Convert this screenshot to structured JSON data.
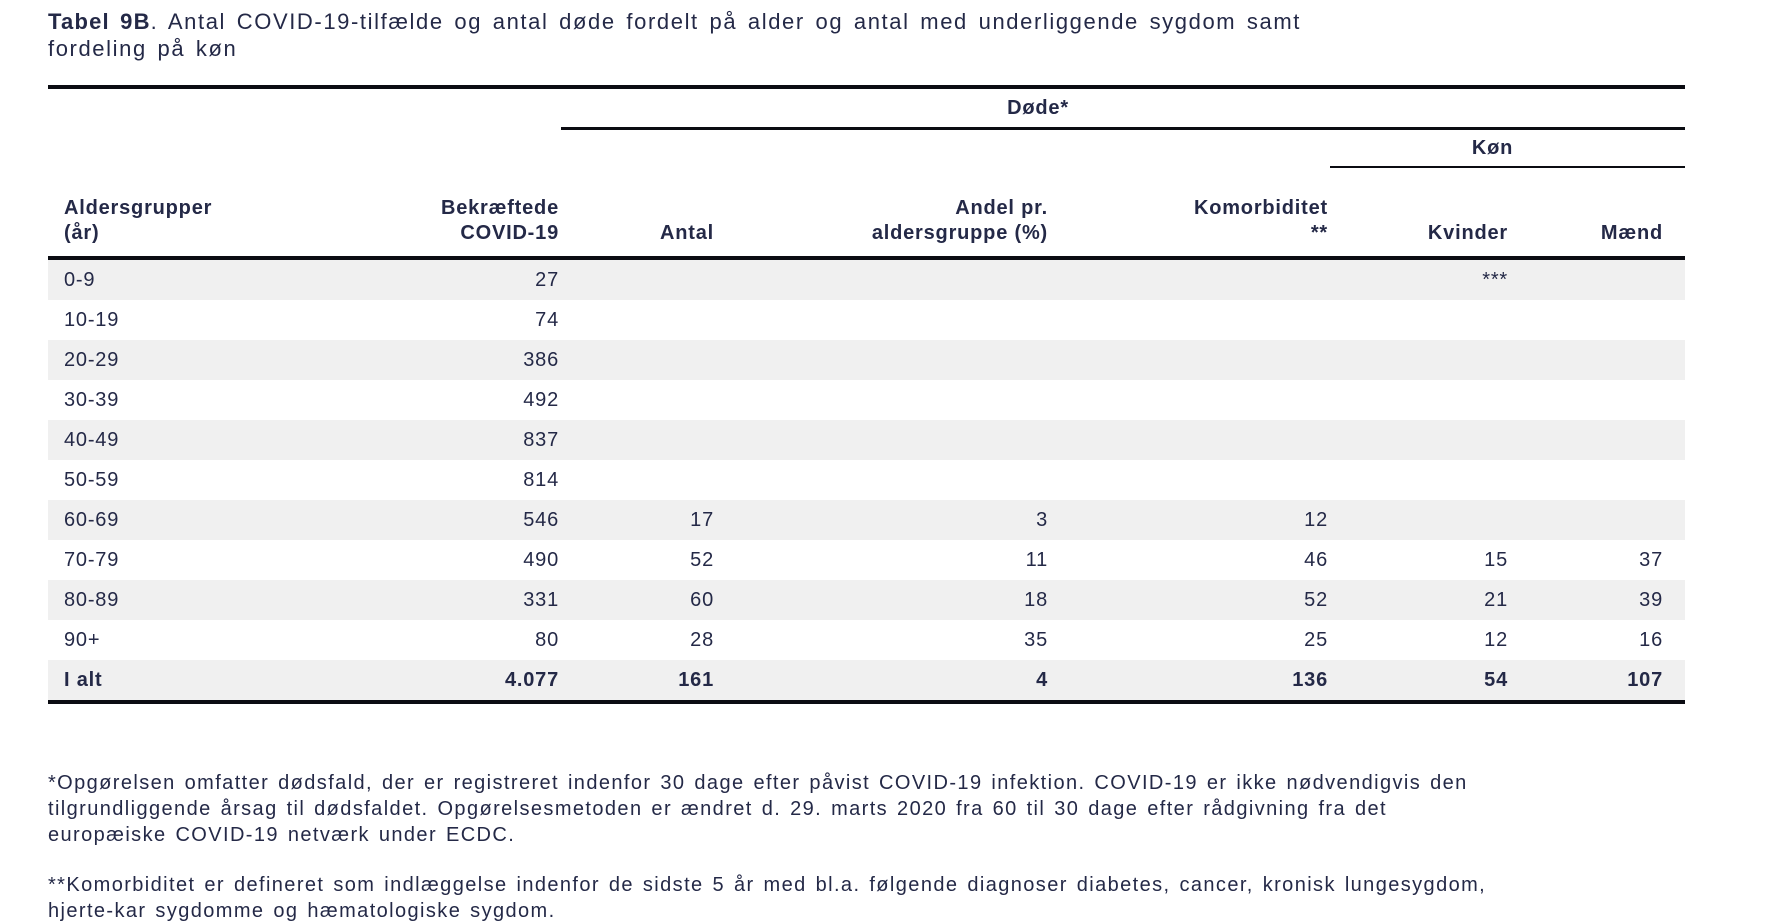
{
  "title": {
    "bold": "Tabel 9B",
    "rest": ". Antal COVID-19-tilfælde og antal døde fordelt på alder og antal med underliggende sygdom samt fordeling på køn"
  },
  "table": {
    "group_dode": "Døde*",
    "group_kon": "Køn",
    "col_headers": [
      {
        "line1": "Aldersgrupper",
        "line2": "(år)"
      },
      {
        "line1": "Bekræftede",
        "line2": "COVID-19"
      },
      {
        "line1": "",
        "line2": "Antal"
      },
      {
        "line1": "Andel pr.",
        "line2": "aldersgruppe (%)"
      },
      {
        "line1": "Komorbiditet",
        "line2": "**"
      },
      {
        "line1": "",
        "line2": "Kvinder"
      },
      {
        "line1": "",
        "line2": "Mænd"
      }
    ],
    "rows": [
      {
        "cells": [
          "0-9",
          "27",
          "",
          "",
          "",
          "***",
          ""
        ]
      },
      {
        "cells": [
          "10-19",
          "74",
          "",
          "",
          "",
          "",
          ""
        ]
      },
      {
        "cells": [
          "20-29",
          "386",
          "",
          "",
          "",
          "",
          ""
        ]
      },
      {
        "cells": [
          "30-39",
          "492",
          "",
          "",
          "",
          "",
          ""
        ]
      },
      {
        "cells": [
          "40-49",
          "837",
          "",
          "",
          "",
          "",
          ""
        ]
      },
      {
        "cells": [
          "50-59",
          "814",
          "",
          "",
          "",
          "",
          ""
        ]
      },
      {
        "cells": [
          "60-69",
          "546",
          "17",
          "3",
          "12",
          "",
          ""
        ]
      },
      {
        "cells": [
          "70-79",
          "490",
          "52",
          "11",
          "46",
          "15",
          "37"
        ]
      },
      {
        "cells": [
          "80-89",
          "331",
          "60",
          "18",
          "52",
          "21",
          "39"
        ]
      },
      {
        "cells": [
          "90+",
          "80",
          "28",
          "35",
          "25",
          "12",
          "16"
        ]
      },
      {
        "cells": [
          "I alt",
          "4.077",
          "161",
          "4",
          "136",
          "54",
          "107"
        ],
        "total": true
      }
    ]
  },
  "footnotes": [
    "*Opgørelsen omfatter dødsfald, der er registreret indenfor 30 dage efter påvist COVID-19 infektion. COVID-19 er ikke nødvendigvis den tilgrundliggende årsag til dødsfaldet. Opgørelsesmetoden er ændret d. 29. marts 2020 fra 60 til 30 dage efter rådgivning fra det europæiske COVID-19 netværk under ECDC.",
    "**Komorbiditet er defineret som indlæggelse indenfor de sidste 5 år med bl.a. følgende diagnoser diabetes, cancer, kronisk lungesygdom, hjerte-kar sygdomme og hæmatologiske sygdom."
  ],
  "colors": {
    "ink": "#242947",
    "rule": "#0b0c12",
    "shade": "#f0f0f0",
    "bg": "#ffffff"
  }
}
